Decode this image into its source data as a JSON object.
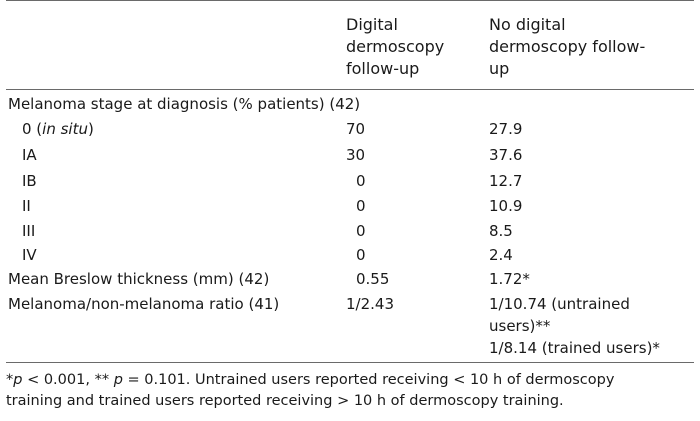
{
  "header": {
    "col_a_lines": [
      "Digital",
      "dermoscopy",
      "follow-up"
    ],
    "col_b_lines": [
      "No digital",
      "dermoscopy follow-",
      "up"
    ]
  },
  "section": {
    "title": "Melanoma stage at diagnosis (% patients) (42)"
  },
  "stage_rows": [
    {
      "pre": "0 (",
      "ital": "in situ",
      "post": ")",
      "a": "70",
      "b": "27.9"
    },
    {
      "pre": "IA",
      "ital": "",
      "post": "",
      "a": "30",
      "b": "37.6"
    },
    {
      "pre": "IB",
      "ital": "",
      "post": "",
      "a": "0",
      "b": "12.7"
    },
    {
      "pre": "II",
      "ital": "",
      "post": "",
      "a": "0",
      "b": "10.9"
    },
    {
      "pre": "III",
      "ital": "",
      "post": "",
      "a": "0",
      "b": "8.5"
    },
    {
      "pre": "IV",
      "ital": "",
      "post": "",
      "a": "0",
      "b": "2.4"
    }
  ],
  "breslow": {
    "label": "Mean Breslow thickness (mm) (42)",
    "a": "0.55",
    "b": "1.72*"
  },
  "ratio": {
    "label": "Melanoma/non-melanoma ratio (41)",
    "a": "1/2.43",
    "b_lines": [
      "1/10.74 (untrained",
      "users)**",
      "1/8.14 (trained users)*"
    ]
  },
  "footnote": {
    "p1": "p",
    "t1": " < 0.001, ** ",
    "p2": "p",
    "t2": " = 0.101. Untrained users reported receiving < 10 h of dermoscopy",
    "line2": "training and trained users reported receiving > 10 h of dermoscopy training."
  }
}
